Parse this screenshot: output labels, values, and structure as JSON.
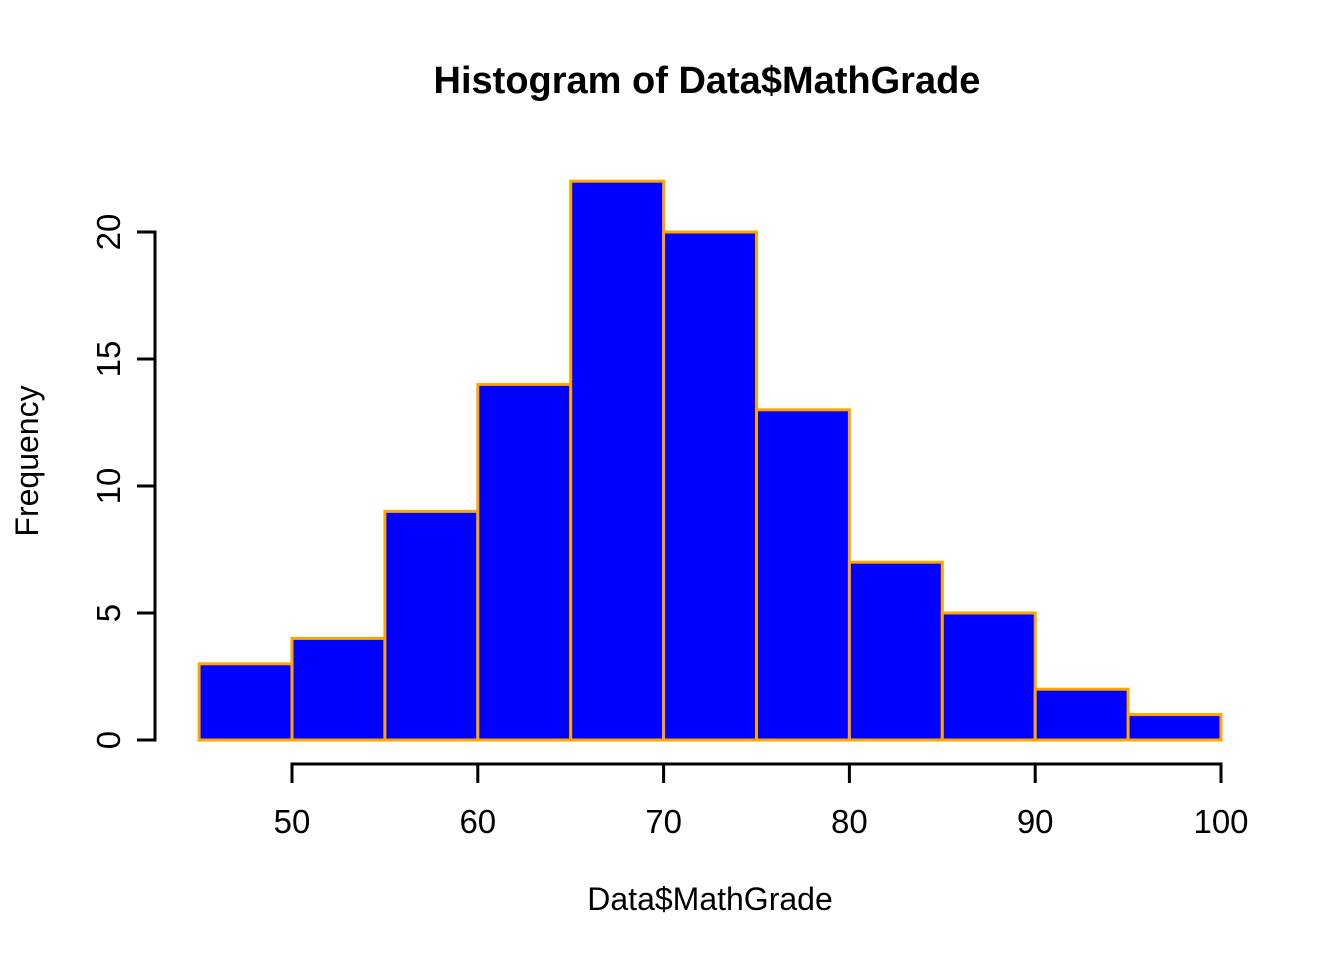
{
  "chart_data": {
    "type": "bar",
    "subtype": "histogram",
    "title": "Histogram of Data$MathGrade",
    "xlabel": "Data$MathGrade",
    "ylabel": "Frequency",
    "bin_width": 5,
    "bin_edges": [
      45,
      50,
      55,
      60,
      65,
      70,
      75,
      80,
      85,
      90,
      95,
      100
    ],
    "categories": [
      "45-50",
      "50-55",
      "55-60",
      "60-65",
      "65-70",
      "70-75",
      "75-80",
      "80-85",
      "85-90",
      "90-95",
      "95-100"
    ],
    "values": [
      3,
      4,
      9,
      14,
      22,
      20,
      13,
      7,
      5,
      2,
      1
    ],
    "x_ticks": [
      50,
      60,
      70,
      80,
      90,
      100
    ],
    "y_ticks": [
      0,
      5,
      10,
      15,
      20
    ],
    "xlim": [
      45,
      100
    ],
    "ylim": [
      0,
      22
    ],
    "grid": false,
    "legend": null,
    "bar_fill": "#0000FF",
    "bar_border": "#FFA500",
    "axis_color": "#000000",
    "background": "#FFFFFF"
  }
}
